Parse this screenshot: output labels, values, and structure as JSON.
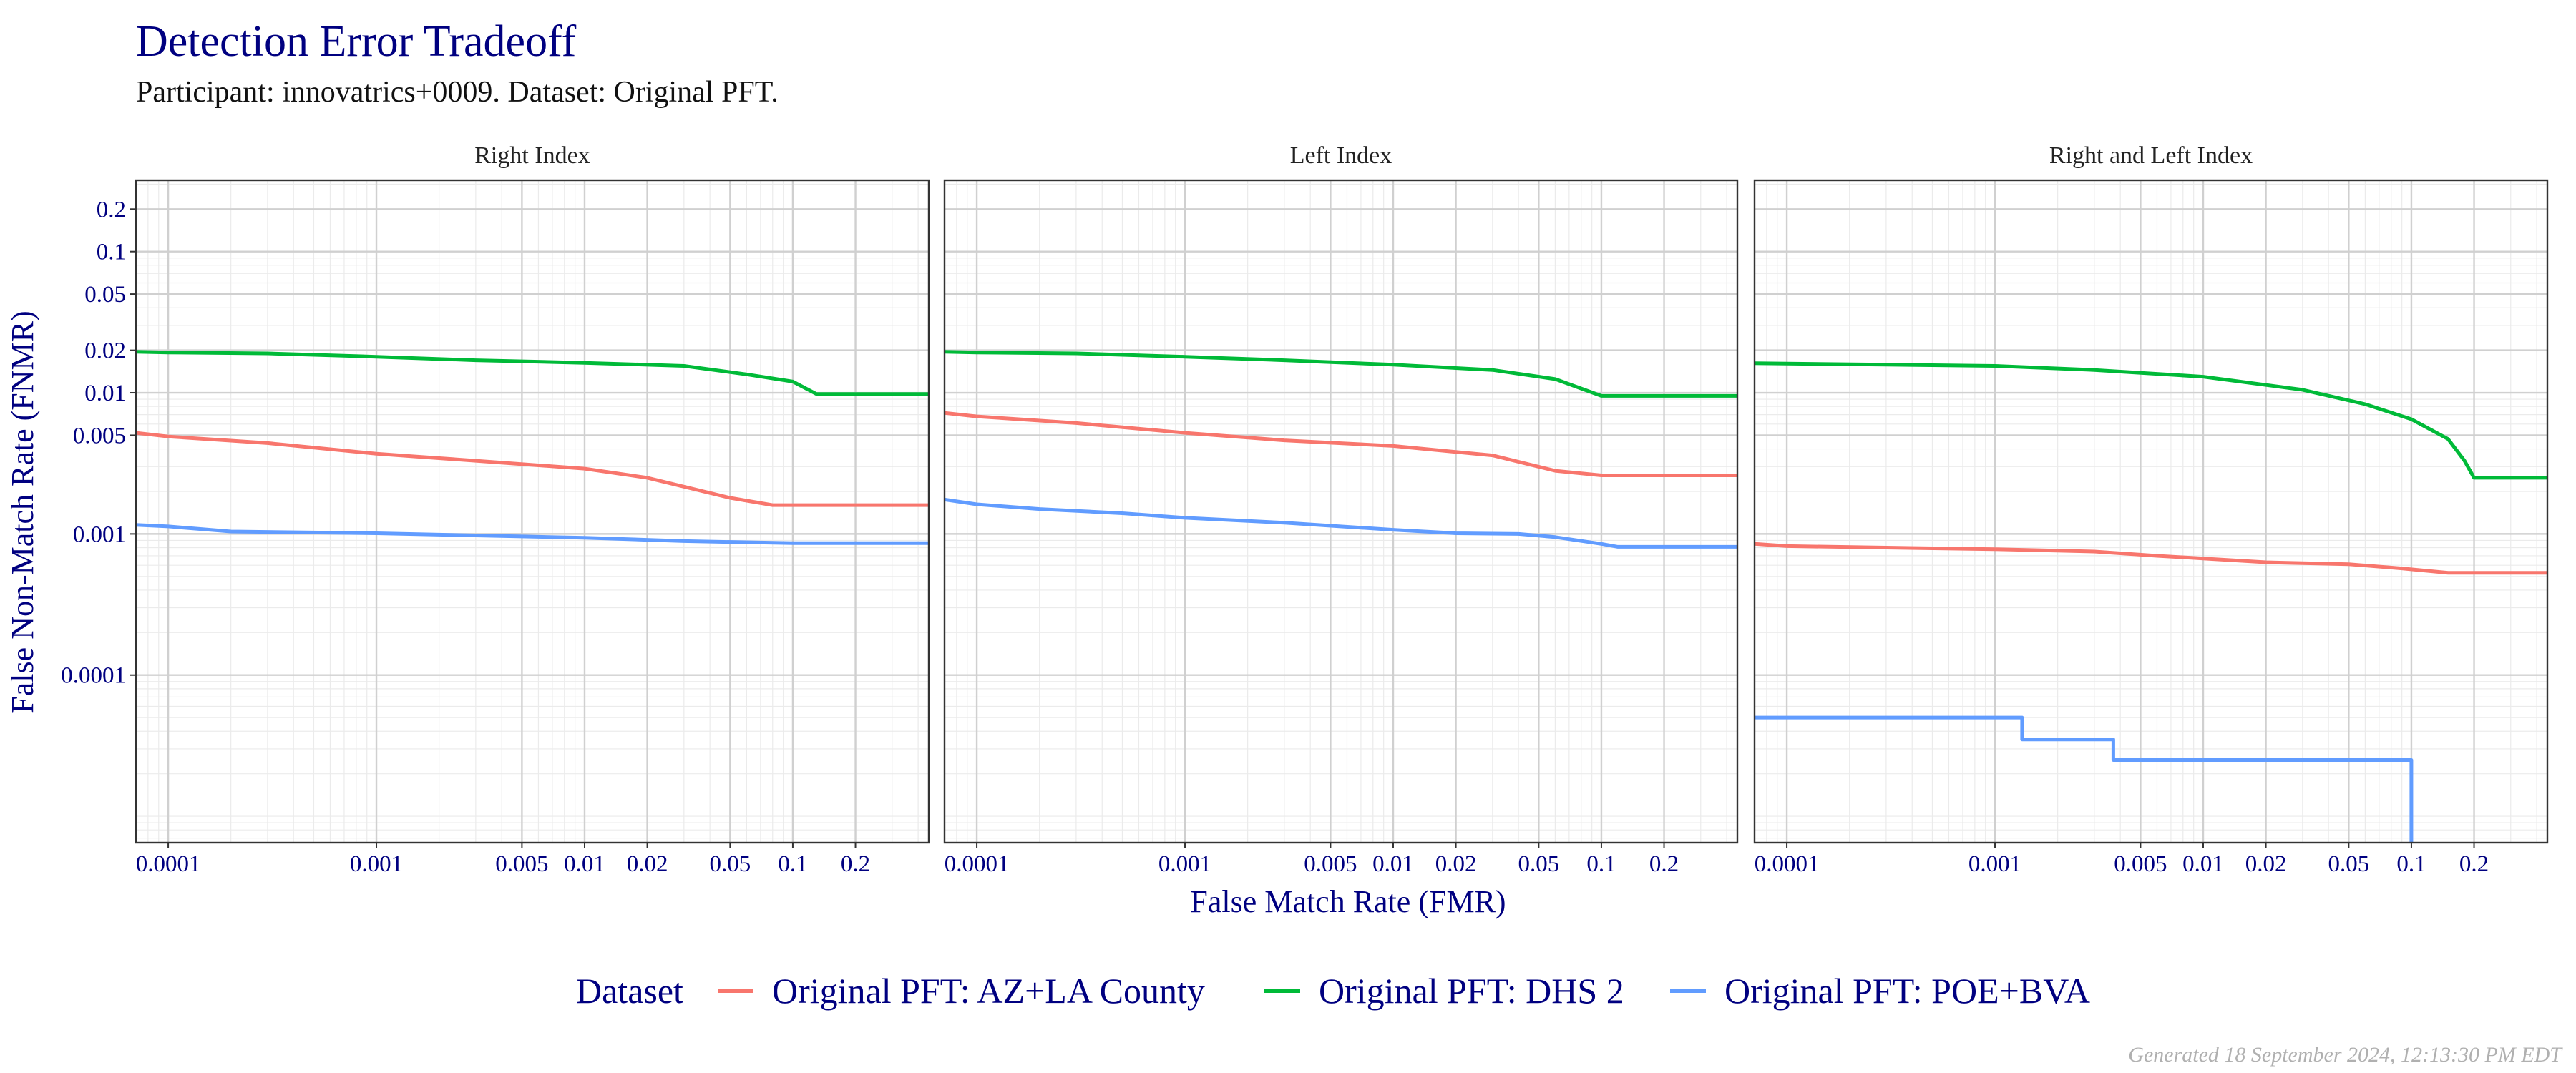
{
  "title": "Detection Error Tradeoff",
  "subtitle": "Participant: innovatrics+0009. Dataset: Original PFT.",
  "footnote": "Generated 18 September 2024, 12:13:30 PM EDT",
  "colors": {
    "title": "#000080",
    "AZ+LA County": "#F8766D",
    "DHS 2": "#00BA38",
    "POE+BVA": "#619CFF"
  },
  "chart_data": {
    "type": "line",
    "xlabel": "False Match Rate (FMR)",
    "ylabel": "False Non-Match Rate (FNMR)",
    "x_scale": "log",
    "y_scale": "log",
    "xlim": [
      7e-05,
      0.45
    ],
    "ylim": [
      6.5e-06,
      0.32
    ],
    "x_ticks": [
      0.0001,
      0.001,
      0.005,
      0.01,
      0.02,
      0.05,
      0.1,
      0.2
    ],
    "x_tick_labels": [
      "0.0001",
      "0.001",
      "0.005",
      "0.01",
      "0.02",
      "0.05",
      "0.1",
      "0.2"
    ],
    "y_ticks": [
      0.0001,
      0.001,
      0.005,
      0.01,
      0.02,
      0.05,
      0.1,
      0.2
    ],
    "y_tick_labels": [
      "0.0001",
      "0.001",
      "0.005",
      "0.01",
      "0.02",
      "0.05",
      "0.1",
      "0.2"
    ],
    "grid": true,
    "legend": {
      "title": "Dataset",
      "position": "bottom",
      "entries": [
        "Original PFT: AZ+LA County",
        "Original PFT: DHS 2",
        "Original PFT: POE+BVA"
      ]
    },
    "panels": [
      {
        "name": "Right Index",
        "series": [
          {
            "name": "Original PFT: DHS 2",
            "color": "#00BA38",
            "x": [
              7e-05,
              0.0001,
              0.0003,
              0.001,
              0.003,
              0.01,
              0.03,
              0.06,
              0.1,
              0.13,
              0.45
            ],
            "y": [
              0.0195,
              0.0193,
              0.019,
              0.018,
              0.017,
              0.0163,
              0.0155,
              0.0135,
              0.012,
              0.0098,
              0.0098
            ]
          },
          {
            "name": "Original PFT: AZ+LA County",
            "color": "#F8766D",
            "x": [
              7e-05,
              0.0001,
              0.0003,
              0.001,
              0.003,
              0.01,
              0.02,
              0.05,
              0.08,
              0.45
            ],
            "y": [
              0.0052,
              0.0049,
              0.0044,
              0.0037,
              0.0033,
              0.0029,
              0.0025,
              0.0018,
              0.0016,
              0.0016
            ]
          },
          {
            "name": "Original PFT: POE+BVA",
            "color": "#619CFF",
            "x": [
              7e-05,
              0.0001,
              0.0002,
              0.001,
              0.005,
              0.01,
              0.03,
              0.1,
              0.45
            ],
            "y": [
              0.00116,
              0.00113,
              0.00104,
              0.00101,
              0.00096,
              0.00094,
              0.00089,
              0.00086,
              0.00086
            ]
          }
        ]
      },
      {
        "name": "Left Index",
        "series": [
          {
            "name": "Original PFT: DHS 2",
            "color": "#00BA38",
            "x": [
              7e-05,
              0.0001,
              0.0003,
              0.001,
              0.003,
              0.01,
              0.03,
              0.06,
              0.1,
              0.45
            ],
            "y": [
              0.0195,
              0.0193,
              0.019,
              0.018,
              0.017,
              0.0158,
              0.0145,
              0.0125,
              0.0095,
              0.0095
            ]
          },
          {
            "name": "Original PFT: AZ+LA County",
            "color": "#F8766D",
            "x": [
              7e-05,
              0.0001,
              0.0003,
              0.001,
              0.003,
              0.01,
              0.03,
              0.06,
              0.1,
              0.45
            ],
            "y": [
              0.0072,
              0.0068,
              0.0061,
              0.0052,
              0.0046,
              0.0042,
              0.0036,
              0.0028,
              0.0026,
              0.0026
            ]
          },
          {
            "name": "Original PFT: POE+BVA",
            "color": "#619CFF",
            "x": [
              7e-05,
              0.0001,
              0.0002,
              0.0005,
              0.001,
              0.003,
              0.01,
              0.02,
              0.04,
              0.06,
              0.1,
              0.12,
              0.45
            ],
            "y": [
              0.00175,
              0.00162,
              0.0015,
              0.0014,
              0.0013,
              0.0012,
              0.00107,
              0.00101,
              0.001,
              0.00095,
              0.00085,
              0.00081,
              0.00081
            ]
          }
        ]
      },
      {
        "name": "Right and Left Index",
        "series": [
          {
            "name": "Original PFT: DHS 2",
            "color": "#00BA38",
            "x": [
              7e-05,
              0.0001,
              0.0003,
              0.001,
              0.003,
              0.01,
              0.03,
              0.06,
              0.1,
              0.15,
              0.18,
              0.2,
              0.45
            ],
            "y": [
              0.0162,
              0.0161,
              0.0158,
              0.0155,
              0.0145,
              0.013,
              0.0105,
              0.0083,
              0.0065,
              0.0047,
              0.0033,
              0.0025,
              0.0025
            ]
          },
          {
            "name": "Original PFT: AZ+LA County",
            "color": "#F8766D",
            "x": [
              7e-05,
              0.0001,
              0.0003,
              0.001,
              0.003,
              0.006,
              0.01,
              0.02,
              0.05,
              0.09,
              0.15,
              0.45
            ],
            "y": [
              0.00085,
              0.00082,
              0.0008,
              0.00078,
              0.00075,
              0.0007,
              0.00067,
              0.00063,
              0.00061,
              0.00057,
              0.00053,
              0.00053
            ]
          },
          {
            "name": "Original PFT: POE+BVA",
            "color": "#619CFF",
            "x": [
              7e-05,
              0.00135,
              0.00135,
              0.0037,
              0.0037,
              0.1,
              0.1
            ],
            "y": [
              5e-05,
              5e-05,
              3.5e-05,
              3.5e-05,
              2.5e-05,
              2.5e-05,
              6.5e-06
            ]
          }
        ]
      }
    ]
  }
}
